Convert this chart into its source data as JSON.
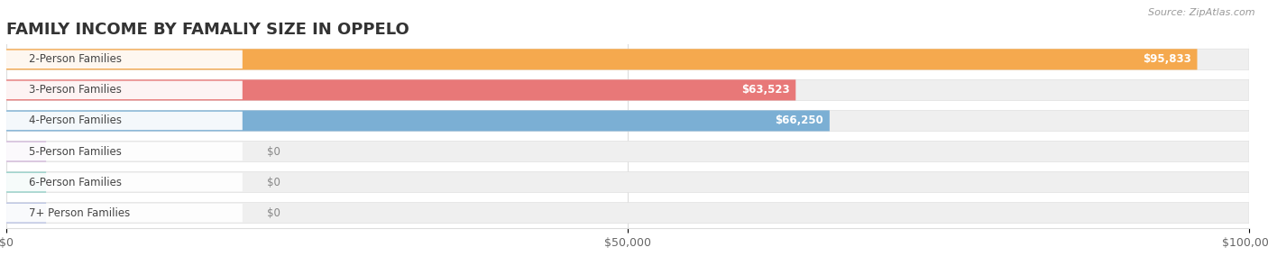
{
  "title": "FAMILY INCOME BY FAMALIY SIZE IN OPPELO",
  "source": "Source: ZipAtlas.com",
  "categories": [
    "2-Person Families",
    "3-Person Families",
    "4-Person Families",
    "5-Person Families",
    "6-Person Families",
    "7+ Person Families"
  ],
  "values": [
    95833,
    63523,
    66250,
    0,
    0,
    0
  ],
  "bar_colors": [
    "#F5A94E",
    "#E87878",
    "#7BAFD4",
    "#C9A4D4",
    "#6EC4B8",
    "#A8B4E0"
  ],
  "value_labels": [
    "$95,833",
    "$63,523",
    "$66,250",
    "$0",
    "$0",
    "$0"
  ],
  "xlim": [
    0,
    100000
  ],
  "xticks": [
    0,
    50000,
    100000
  ],
  "xticklabels": [
    "$0",
    "$50,000",
    "$100,000"
  ],
  "background_color": "#ffffff",
  "bar_bg_color": "#efefef",
  "title_fontsize": 13,
  "label_fontsize": 8.5,
  "tick_fontsize": 9,
  "source_fontsize": 8
}
